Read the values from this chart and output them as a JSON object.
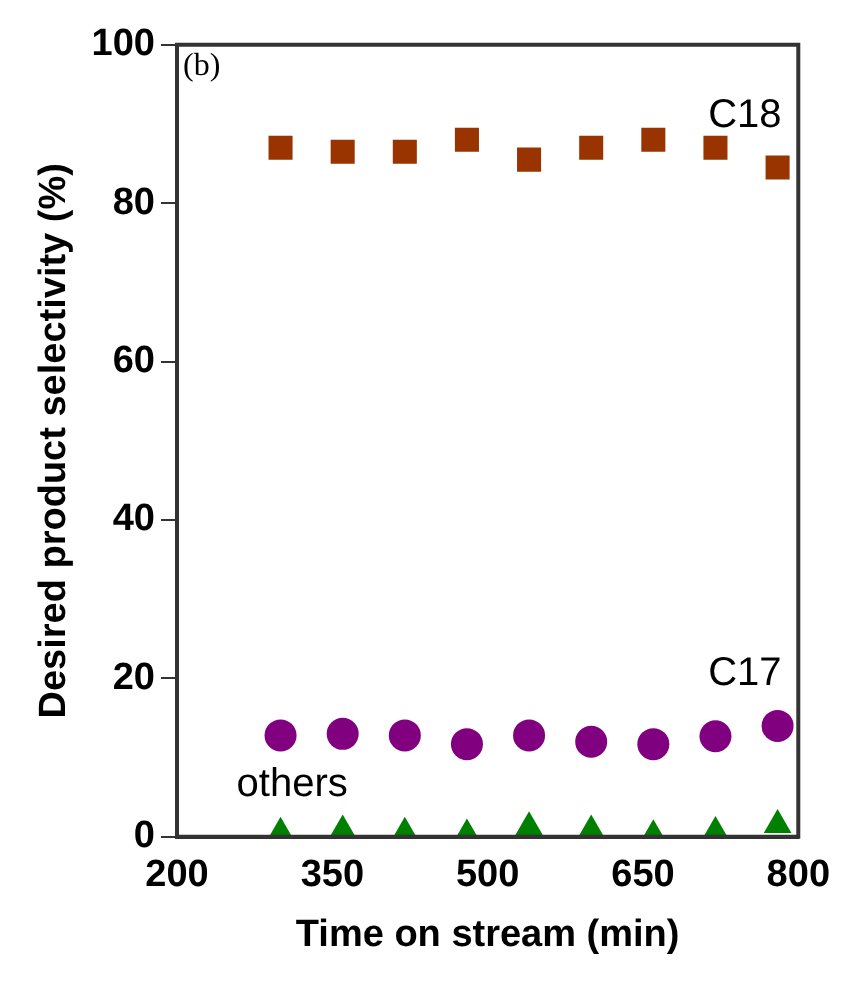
{
  "chart_data": {
    "type": "scatter",
    "xlabel": "Time on stream (min)",
    "ylabel": "Desired product selectivity (%)",
    "annotations": [
      "(b)"
    ],
    "x": [
      300,
      360,
      420,
      480,
      540,
      600,
      660,
      720,
      780
    ],
    "xlim": [
      200,
      800
    ],
    "xticks": [
      200,
      350,
      500,
      650,
      800
    ],
    "ylim": [
      0,
      100
    ],
    "yticks": [
      0,
      20,
      40,
      60,
      80,
      100
    ],
    "grid": false,
    "legend": false,
    "series": [
      {
        "name": "C18",
        "color": "#993300",
        "marker": "square",
        "values": [
          87,
          86.5,
          86.5,
          88,
          85.5,
          87,
          88,
          87,
          84.5
        ]
      },
      {
        "name": "C17",
        "color": "#800080",
        "marker": "circle",
        "values": [
          12.8,
          13,
          12.8,
          11.7,
          12.8,
          12,
          11.7,
          12.7,
          14
        ]
      },
      {
        "name": "others",
        "color": "#008000",
        "marker": "triangle",
        "values": [
          0.5,
          0.8,
          0.5,
          0.3,
          1.2,
          0.8,
          0.2,
          0.6,
          1.5
        ]
      }
    ]
  }
}
